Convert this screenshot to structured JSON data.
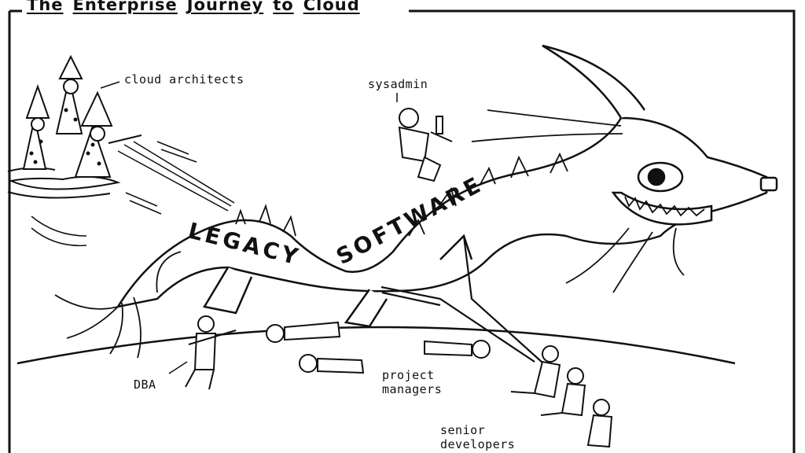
{
  "title": {
    "words": [
      "The",
      "Enterprise",
      "Journey",
      "to",
      "Cloud"
    ]
  },
  "labels": {
    "cloud_architects": "cloud architects",
    "sysadmin": "sysadmin",
    "dba": "DBA",
    "project_managers_line1": "project",
    "project_managers_line2": "managers",
    "senior_developers_line1": "senior",
    "senior_developers_line2": "developers"
  },
  "dragon_text": {
    "legacy": "LEGACY",
    "software": "SOFTWARE"
  }
}
